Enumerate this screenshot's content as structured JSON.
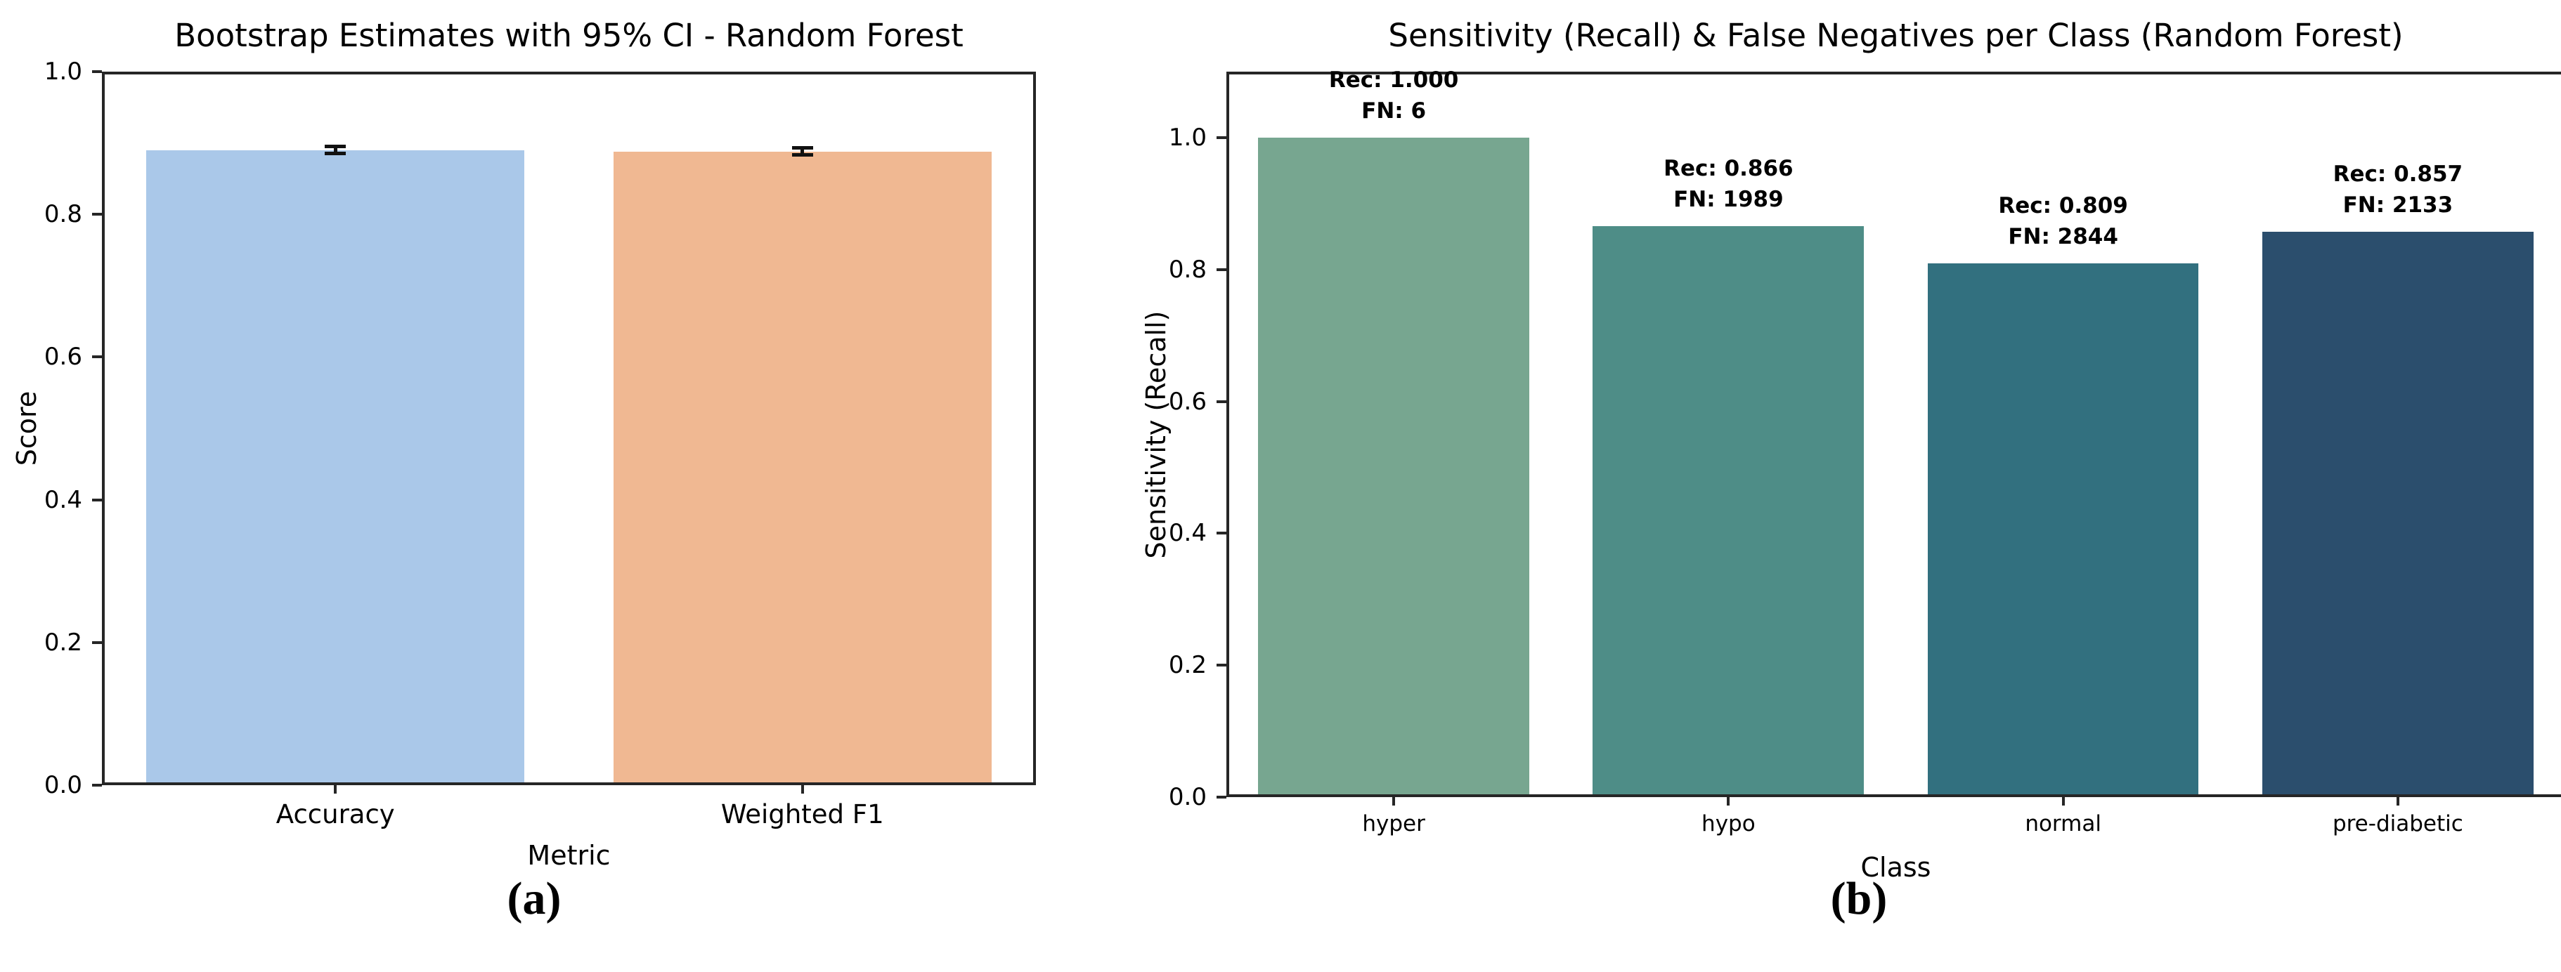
{
  "page": {
    "background": "#ffffff"
  },
  "chart_data": [
    {
      "type": "bar",
      "title": "Bootstrap Estimates with 95% CI - Random Forest",
      "caption": "(a)",
      "xlabel": "Metric",
      "ylabel": "Score",
      "categories": [
        "Accuracy",
        "Weighted F1"
      ],
      "values": [
        0.89,
        0.888
      ],
      "error_bars_95ci_halfwidth": [
        0.005,
        0.005
      ],
      "bar_colors": [
        "#aac8e9",
        "#f0b892"
      ],
      "ylim": [
        0,
        1.0
      ],
      "yticks": [
        "0.0",
        "0.2",
        "0.4",
        "0.6",
        "0.8",
        "1.0"
      ],
      "grid": false,
      "legend": "none"
    },
    {
      "type": "bar",
      "title": "Sensitivity (Recall) & False Negatives per Class (Random Forest)",
      "caption": "(b)",
      "xlabel": "Class",
      "ylabel": "Sensitivity (Recall)",
      "categories": [
        "hyper",
        "hypo",
        "normal",
        "pre-diabetic"
      ],
      "values": [
        1.0,
        0.866,
        0.809,
        0.857
      ],
      "false_negatives": [
        6,
        1989,
        2844,
        2133
      ],
      "annotations": [
        {
          "line1": "Rec: 1.000",
          "line2": "FN: 6"
        },
        {
          "line1": "Rec: 0.866",
          "line2": "FN: 1989"
        },
        {
          "line1": "Rec: 0.809",
          "line2": "FN: 2844"
        },
        {
          "line1": "Rec: 0.857",
          "line2": "FN: 2133"
        }
      ],
      "bar_colors": [
        "#77a690",
        "#4e8d87",
        "#32707f",
        "#2b4e6d"
      ],
      "ylim": [
        0,
        1.1
      ],
      "yticks": [
        "0.0",
        "0.2",
        "0.4",
        "0.6",
        "0.8",
        "1.0"
      ],
      "grid": false,
      "legend": "none"
    }
  ]
}
